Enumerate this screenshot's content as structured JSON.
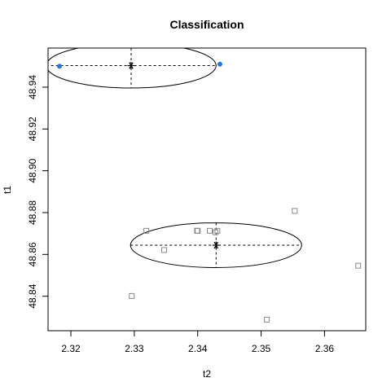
{
  "chart_data": {
    "type": "scatter",
    "title": "Classification",
    "xlabel": "t2",
    "ylabel": "t1",
    "xlim": [
      2.3164,
      2.3665
    ],
    "ylim": [
      48.8235,
      48.9587
    ],
    "xticks": [
      2.32,
      2.33,
      2.34,
      2.35,
      2.36
    ],
    "xtick_labels": [
      "2.32",
      "2.33",
      "2.34",
      "2.35",
      "2.36"
    ],
    "yticks": [
      48.84,
      48.86,
      48.88,
      48.9,
      48.92,
      48.94
    ],
    "ytick_labels": [
      "48.84",
      "48.86",
      "48.88",
      "48.90",
      "48.92",
      "48.94"
    ],
    "grid": false,
    "series": [
      {
        "marker": "filled-circle",
        "color": "#1f78e0",
        "points": [
          {
            "x": 2.3182,
            "y": 48.95
          },
          {
            "x": 2.3435,
            "y": 48.951
          }
        ],
        "center": {
          "x": 2.3295,
          "y": 48.9503
        },
        "ellipse": {
          "cx": 2.3295,
          "cy": 48.9503,
          "rx": 0.0134,
          "ry": 0.0107
        }
      },
      {
        "marker": "open-square",
        "color": "#888888",
        "points": [
          {
            "x": 2.3296,
            "y": 48.8401
          },
          {
            "x": 2.3319,
            "y": 48.8713
          },
          {
            "x": 2.3347,
            "y": 48.8621
          },
          {
            "x": 2.3399,
            "y": 48.8713
          },
          {
            "x": 2.34,
            "y": 48.8713
          },
          {
            "x": 2.3419,
            "y": 48.8713
          },
          {
            "x": 2.3428,
            "y": 48.8706
          },
          {
            "x": 2.3431,
            "y": 48.8713
          },
          {
            "x": 2.3509,
            "y": 48.8288
          },
          {
            "x": 2.3553,
            "y": 48.8808
          },
          {
            "x": 2.3653,
            "y": 48.8546
          }
        ],
        "center": {
          "x": 2.3429,
          "y": 48.8644
        },
        "ellipse": {
          "cx": 2.3429,
          "cy": 48.8644,
          "rx": 0.0135,
          "ry": 0.0107
        }
      }
    ]
  }
}
